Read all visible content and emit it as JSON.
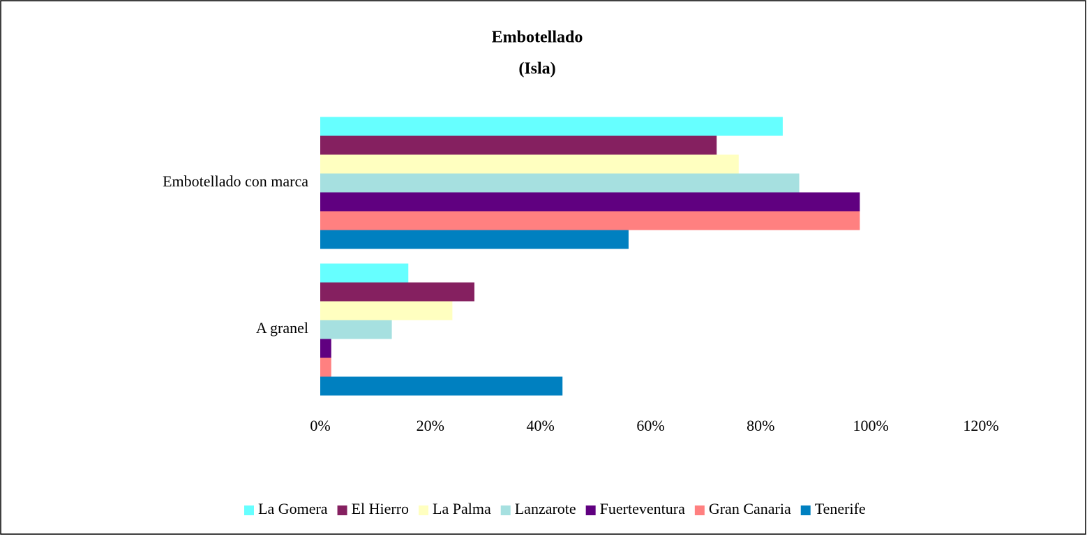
{
  "chart_data": {
    "type": "hbar",
    "title": "Embotellado",
    "subtitle": "(Isla)",
    "categories": [
      "Embotellado con marca",
      "A granel"
    ],
    "series": [
      {
        "name": "La Gomera",
        "color": "#66ffff",
        "values": [
          84,
          16
        ]
      },
      {
        "name": "El Hierro",
        "color": "#852060",
        "values": [
          72,
          28
        ]
      },
      {
        "name": "La Palma",
        "color": "#ffffc0",
        "values": [
          76,
          24
        ]
      },
      {
        "name": "Lanzarote",
        "color": "#a6e0e0",
        "values": [
          87,
          13
        ]
      },
      {
        "name": "Fuerteventura",
        "color": "#600080",
        "values": [
          98,
          2
        ]
      },
      {
        "name": "Gran Canaria",
        "color": "#ff8080",
        "values": [
          98,
          2
        ]
      },
      {
        "name": "Tenerife",
        "color": "#0080c0",
        "values": [
          56,
          44
        ]
      }
    ],
    "xlim": [
      0,
      120
    ],
    "xticks": [
      {
        "value": 0,
        "label": "0%"
      },
      {
        "value": 20,
        "label": "20%"
      },
      {
        "value": 40,
        "label": "40%"
      },
      {
        "value": 60,
        "label": "60%"
      },
      {
        "value": 80,
        "label": "80%"
      },
      {
        "value": 100,
        "label": "100%"
      },
      {
        "value": 120,
        "label": "120%"
      }
    ],
    "grid": false,
    "legend": "bottom"
  }
}
